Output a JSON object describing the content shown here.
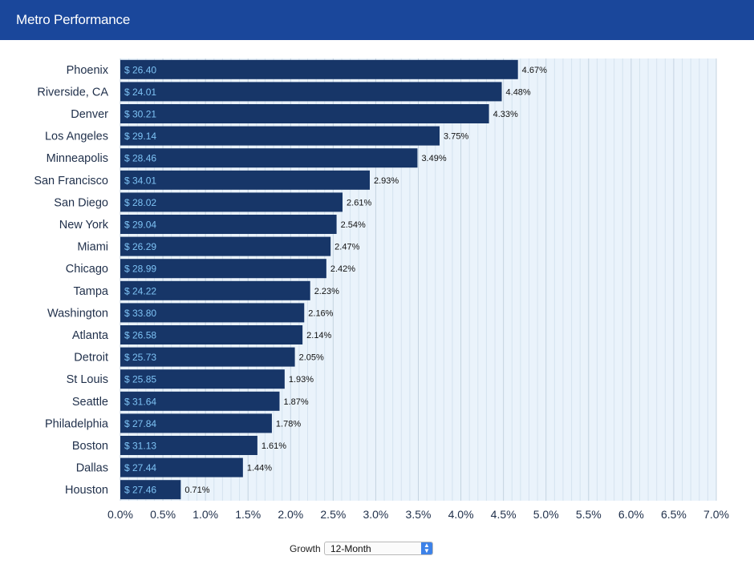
{
  "header": {
    "title": "Metro Performance"
  },
  "controls": {
    "growth_label": "Growth",
    "period_selected": "12-Month"
  },
  "icons": {
    "select_arrow": "chevron-up-down-icon"
  },
  "colors": {
    "header": "#1a479b",
    "bar": "#173668",
    "bar_label": "#7ec3f5",
    "plot_bg": "#eaf3fb"
  },
  "chart_data": {
    "type": "bar",
    "orientation": "horizontal",
    "categories": [
      "Phoenix",
      "Riverside, CA",
      "Denver",
      "Los Angeles",
      "Minneapolis",
      "San Francisco",
      "San Diego",
      "New York",
      "Miami",
      "Chicago",
      "Tampa",
      "Washington",
      "Atlanta",
      "Detroit",
      "St Louis",
      "Seattle",
      "Philadelphia",
      "Boston",
      "Dallas",
      "Houston"
    ],
    "series": [
      {
        "values": [
          4.67,
          4.48,
          4.33,
          3.75,
          3.49,
          2.93,
          2.61,
          2.54,
          2.47,
          2.42,
          2.23,
          2.16,
          2.14,
          2.05,
          1.93,
          1.87,
          1.78,
          1.61,
          1.44,
          0.71
        ],
        "value_labels": [
          "4.67%",
          "4.48%",
          "4.33%",
          "3.75%",
          "3.49%",
          "2.93%",
          "2.61%",
          "2.54%",
          "2.47%",
          "2.42%",
          "2.23%",
          "2.16%",
          "2.14%",
          "2.05%",
          "1.93%",
          "1.87%",
          "1.78%",
          "1.61%",
          "1.44%",
          "0.71%"
        ]
      },
      {
        "values": [
          26.4,
          24.01,
          30.21,
          29.14,
          28.46,
          34.01,
          28.02,
          29.04,
          26.29,
          28.99,
          24.22,
          33.8,
          26.58,
          25.73,
          25.85,
          31.64,
          27.84,
          31.13,
          27.44,
          27.46
        ],
        "value_labels": [
          "$ 26.40",
          "$ 24.01",
          "$ 30.21",
          "$ 29.14",
          "$ 28.46",
          "$ 34.01",
          "$ 28.02",
          "$ 29.04",
          "$ 26.29",
          "$ 28.99",
          "$ 24.22",
          "$ 33.80",
          "$ 26.58",
          "$ 25.73",
          "$ 25.85",
          "$ 31.64",
          "$ 27.84",
          "$ 31.13",
          "$ 27.44",
          "$ 27.46"
        ]
      }
    ],
    "xlim": [
      0,
      7.0
    ],
    "x_ticks": [
      "0.0%",
      "0.5%",
      "1.0%",
      "1.5%",
      "2.0%",
      "2.5%",
      "3.0%",
      "3.5%",
      "4.0%",
      "4.5%",
      "5.0%",
      "5.5%",
      "6.0%",
      "6.5%",
      "7.0%"
    ],
    "grid": true
  }
}
